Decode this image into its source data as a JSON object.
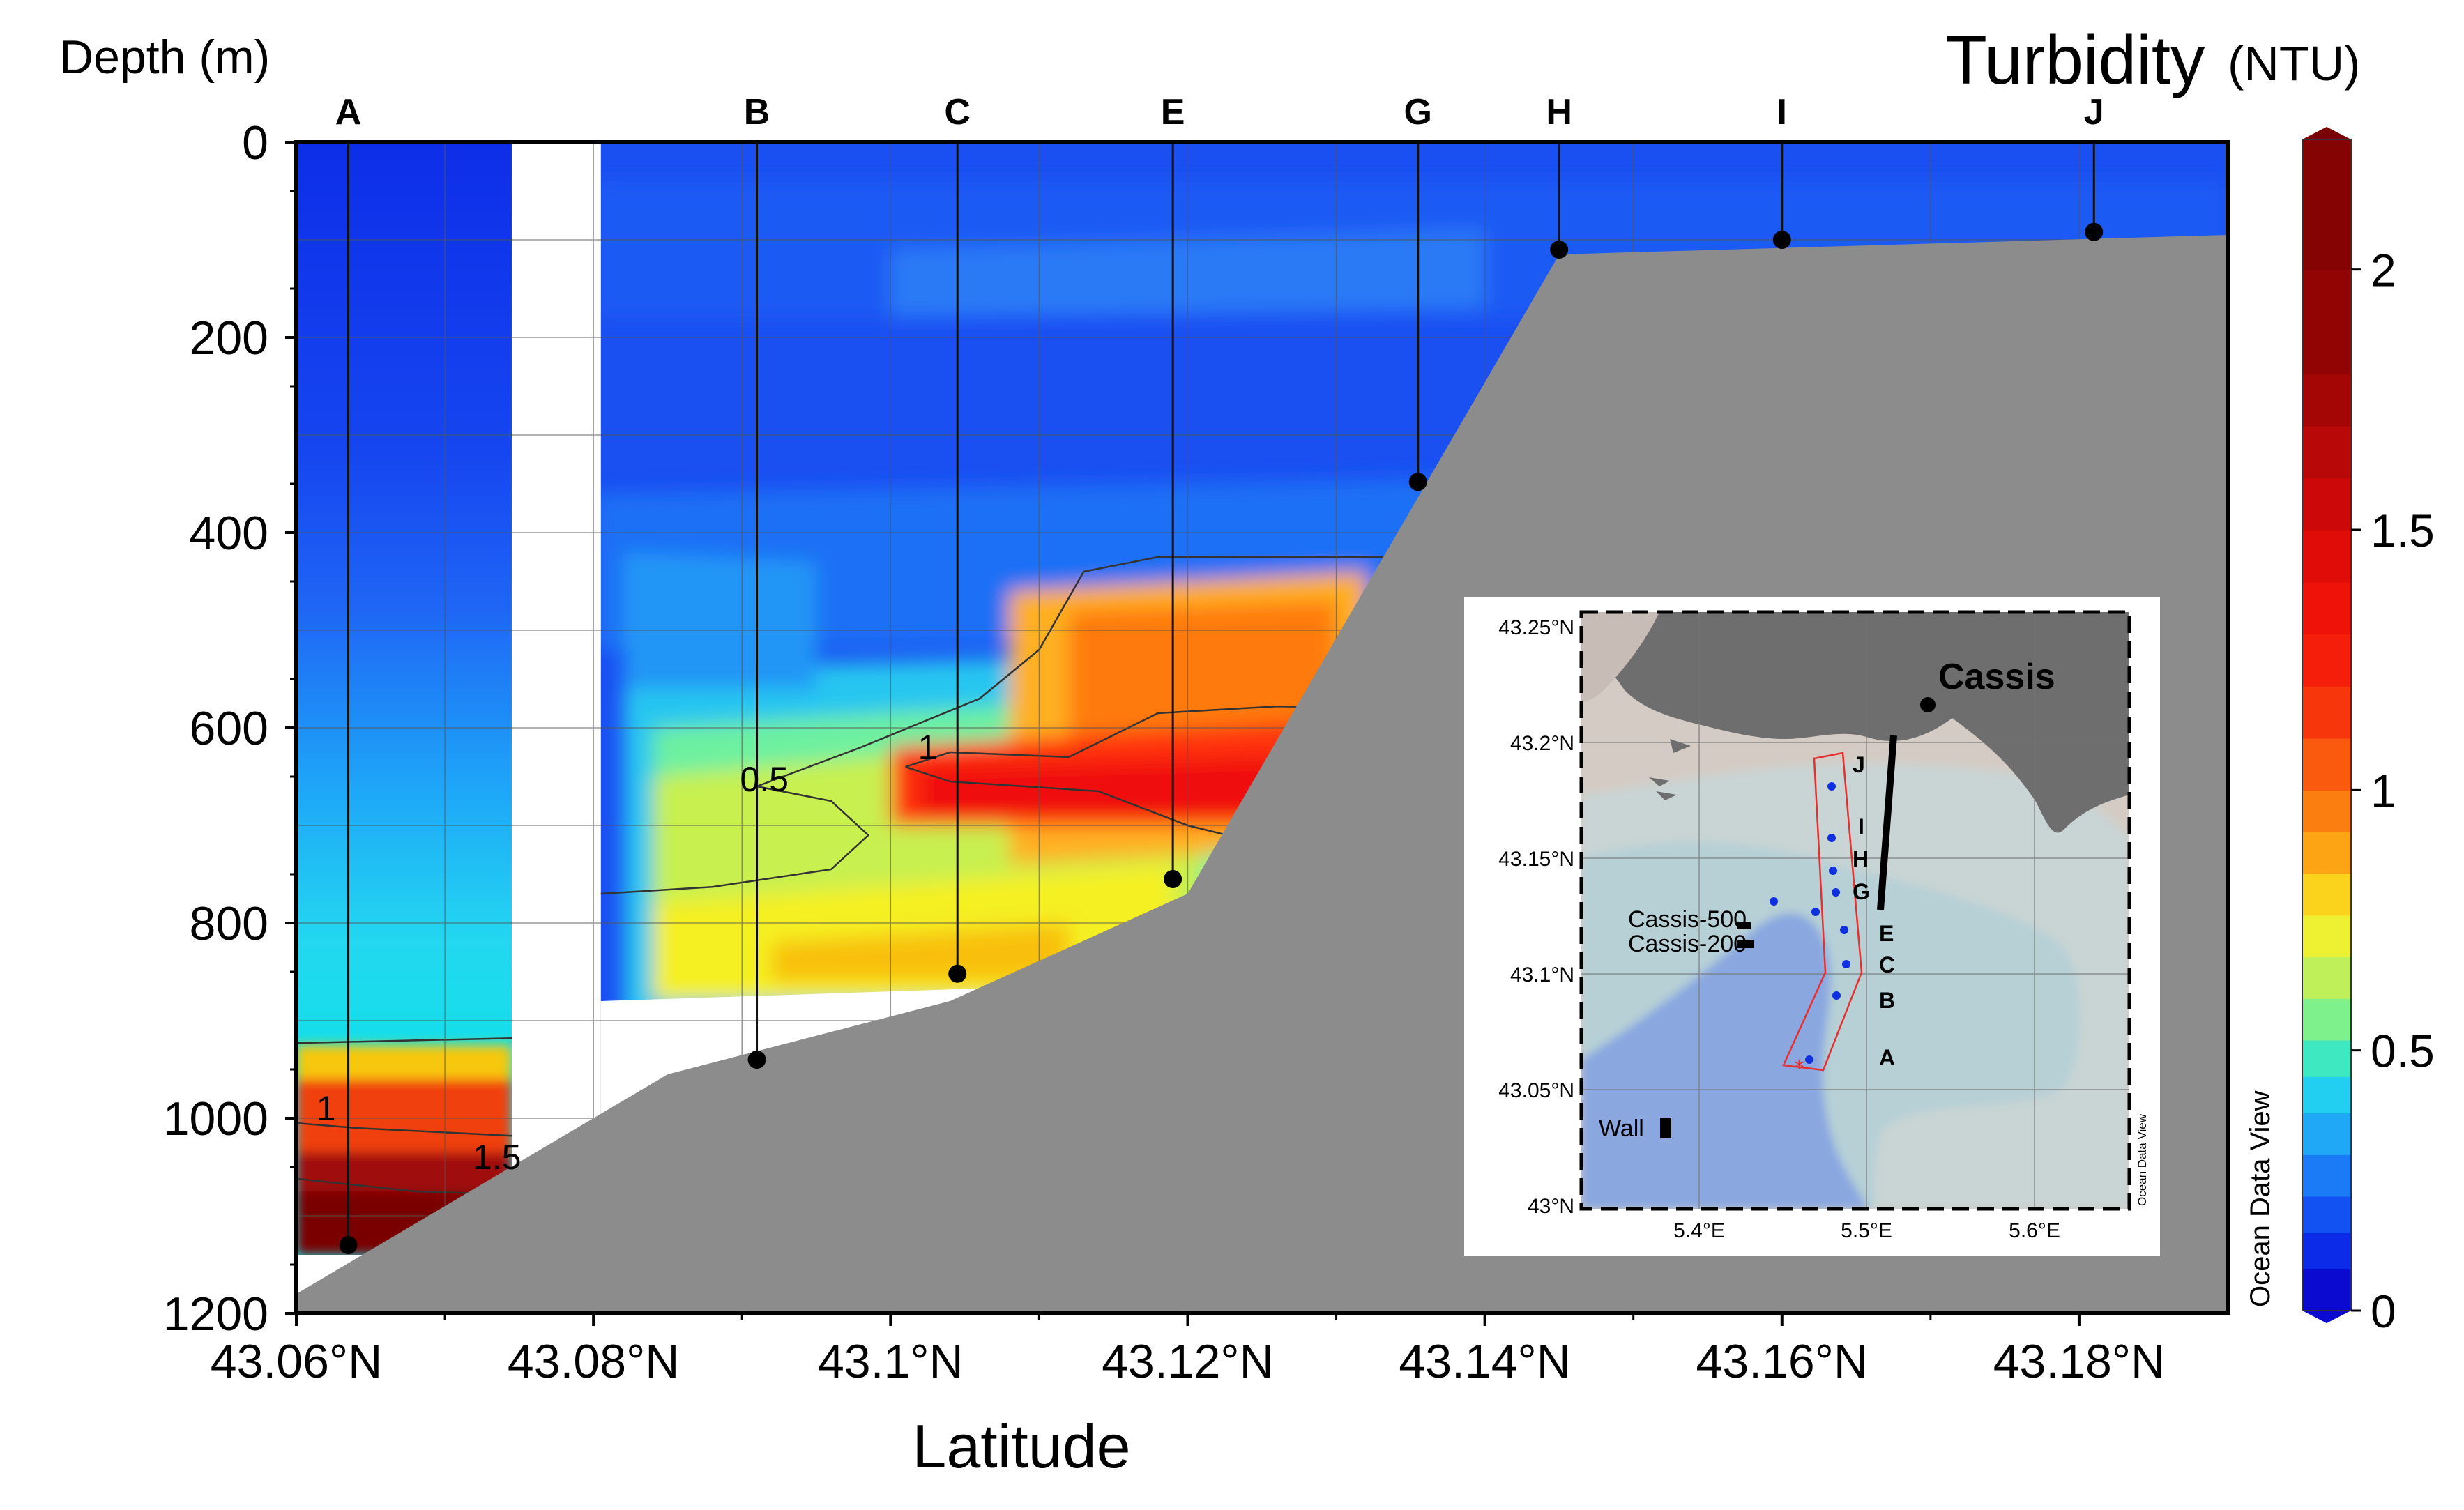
{
  "chart_data": {
    "type": "heatmap",
    "title": "Turbidity",
    "title_unit": "(NTU)",
    "ylabel": "Depth (m)",
    "xlabel": "Latitude",
    "x_axis": {
      "ticks": [
        43.06,
        43.08,
        43.1,
        43.12,
        43.14,
        43.16,
        43.18
      ],
      "tick_labels": [
        "43.06°N",
        "43.08°N",
        "43.1°N",
        "43.12°N",
        "43.14°N",
        "43.16°N",
        "43.18°N"
      ],
      "range": [
        43.06,
        43.19
      ]
    },
    "y_axis": {
      "ticks": [
        0,
        200,
        400,
        600,
        800,
        1000,
        1200
      ],
      "tick_labels": [
        "0",
        "200",
        "400",
        "600",
        "800",
        "1000",
        "1200"
      ],
      "range": [
        0,
        1200
      ],
      "inverted": true
    },
    "grid": true,
    "stations": [
      {
        "name": "A",
        "lat": 43.0635,
        "bottom_depth": 1130
      },
      {
        "name": "B",
        "lat": 43.091,
        "bottom_depth": 940
      },
      {
        "name": "C",
        "lat": 43.1045,
        "bottom_depth": 852
      },
      {
        "name": "E",
        "lat": 43.119,
        "bottom_depth": 755
      },
      {
        "name": "G",
        "lat": 43.1355,
        "bottom_depth": 348
      },
      {
        "name": "H",
        "lat": 43.145,
        "bottom_depth": 110
      },
      {
        "name": "I",
        "lat": 43.16,
        "bottom_depth": 100
      },
      {
        "name": "J",
        "lat": 43.181,
        "bottom_depth": 92
      }
    ],
    "contour_labels": [
      {
        "text": "0.5",
        "lat": 43.0915,
        "depth": 665
      },
      {
        "text": "1",
        "lat": 43.1025,
        "depth": 632
      },
      {
        "text": "1",
        "lat": 43.062,
        "depth": 1002
      },
      {
        "text": "1.5",
        "lat": 43.0735,
        "depth": 1052
      }
    ],
    "colorbar": {
      "ticks": [
        0,
        0.5,
        1,
        1.5,
        2
      ],
      "tick_labels": [
        "0",
        "0.5",
        "1",
        "1.5",
        "2"
      ],
      "range": [
        0,
        2.25
      ]
    },
    "watermark": "Ocean Data View"
  },
  "inset_map": {
    "lat_labels": [
      "43.25°N",
      "43.2°N",
      "43.15°N",
      "43.1°N",
      "43.05°N",
      "43°N"
    ],
    "lon_labels": [
      "5.4°E",
      "5.5°E",
      "5.6°E"
    ],
    "place_label": "Cassis",
    "station_letters": [
      "J",
      "I",
      "H",
      "G",
      "E",
      "C",
      "B",
      "A"
    ],
    "moorings": [
      "Cassis-500",
      "Cassis-200",
      "Wall"
    ],
    "watermark": "Ocean Data View"
  }
}
